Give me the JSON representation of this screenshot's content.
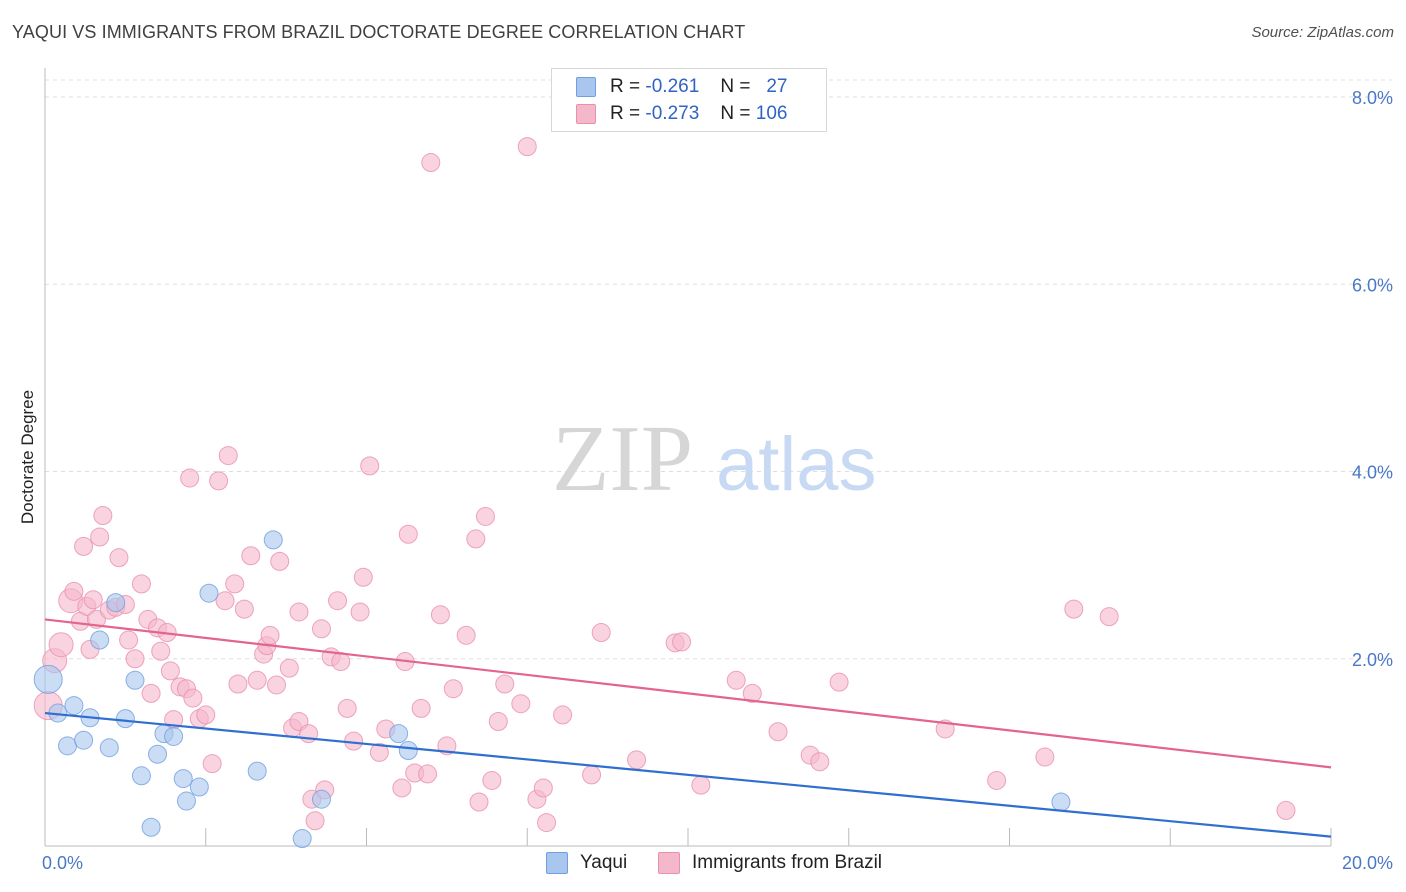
{
  "title": "YAQUI VS IMMIGRANTS FROM BRAZIL DOCTORATE DEGREE CORRELATION CHART",
  "source": "Source: ZipAtlas.com",
  "watermark": {
    "zip": "ZIP",
    "atlas": "atlas"
  },
  "legend": {
    "rows": [
      {
        "r_label": "R =",
        "r_value": "-0.261",
        "n_label": "N =",
        "n_value": "27",
        "color": "#a9c6ef"
      },
      {
        "r_label": "R =",
        "r_value": "-0.273",
        "n_label": "N =",
        "n_value": "106",
        "color": "#f5b8cb"
      }
    ]
  },
  "bottom_legend": {
    "yaqui": "Yaqui",
    "brazil": "Immigrants from Brazil"
  },
  "chart_data": {
    "type": "scatter",
    "title": "YAQUI VS IMMIGRANTS FROM BRAZIL DOCTORATE DEGREE CORRELATION CHART",
    "xlabel": "",
    "ylabel": "Doctorate Degree",
    "xlim": [
      0,
      20
    ],
    "ylim": [
      0,
      8.0
    ],
    "x_tick_labels": [
      "0.0%",
      "20.0%"
    ],
    "y_ticks": [
      2.0,
      4.0,
      6.0,
      8.0
    ],
    "y_tick_labels": [
      "2.0%",
      "4.0%",
      "6.0%",
      "8.0%"
    ],
    "grid": true,
    "colors": {
      "yaqui": "#a9c6ef",
      "yaqui_edge": "#6f9fe0",
      "yaqui_line": "#2f6fcf",
      "brazil": "#f5b8cb",
      "brazil_edge": "#ea8fae",
      "brazil_line": "#e2648f"
    },
    "series": [
      {
        "name": "Yaqui",
        "trend": {
          "x": [
            0,
            20
          ],
          "y": [
            1.42,
            0.1
          ]
        },
        "points": [
          {
            "x": 0.05,
            "y": 1.78,
            "s": 14
          },
          {
            "x": 0.2,
            "y": 1.42,
            "s": 9
          },
          {
            "x": 0.45,
            "y": 1.5,
            "s": 9
          },
          {
            "x": 0.35,
            "y": 1.07,
            "s": 9
          },
          {
            "x": 0.6,
            "y": 1.13,
            "s": 9
          },
          {
            "x": 0.7,
            "y": 1.37,
            "s": 9
          },
          {
            "x": 0.85,
            "y": 2.2,
            "s": 9
          },
          {
            "x": 1.0,
            "y": 1.05,
            "s": 9
          },
          {
            "x": 1.1,
            "y": 2.6,
            "s": 9
          },
          {
            "x": 1.25,
            "y": 1.36,
            "s": 9
          },
          {
            "x": 1.4,
            "y": 1.77,
            "s": 9
          },
          {
            "x": 1.5,
            "y": 0.75,
            "s": 9
          },
          {
            "x": 1.65,
            "y": 0.2,
            "s": 9
          },
          {
            "x": 1.75,
            "y": 0.98,
            "s": 9
          },
          {
            "x": 1.85,
            "y": 1.2,
            "s": 9
          },
          {
            "x": 2.0,
            "y": 1.17,
            "s": 9
          },
          {
            "x": 2.15,
            "y": 0.72,
            "s": 9
          },
          {
            "x": 2.2,
            "y": 0.48,
            "s": 9
          },
          {
            "x": 2.4,
            "y": 0.63,
            "s": 9
          },
          {
            "x": 2.55,
            "y": 2.7,
            "s": 9
          },
          {
            "x": 3.3,
            "y": 0.8,
            "s": 9
          },
          {
            "x": 3.55,
            "y": 3.27,
            "s": 9
          },
          {
            "x": 4.0,
            "y": 0.08,
            "s": 9
          },
          {
            "x": 4.3,
            "y": 0.5,
            "s": 9
          },
          {
            "x": 5.5,
            "y": 1.2,
            "s": 9
          },
          {
            "x": 5.65,
            "y": 1.02,
            "s": 9
          },
          {
            "x": 15.8,
            "y": 0.47,
            "s": 9
          }
        ]
      },
      {
        "name": "Immigrants from Brazil",
        "trend": {
          "x": [
            0,
            20
          ],
          "y": [
            2.42,
            0.84
          ]
        },
        "points": [
          {
            "x": 0.05,
            "y": 1.5,
            "s": 14
          },
          {
            "x": 0.15,
            "y": 1.98,
            "s": 12
          },
          {
            "x": 0.25,
            "y": 2.15,
            "s": 12
          },
          {
            "x": 0.4,
            "y": 2.62,
            "s": 12
          },
          {
            "x": 0.45,
            "y": 2.72,
            "s": 9
          },
          {
            "x": 0.55,
            "y": 2.4,
            "s": 9
          },
          {
            "x": 0.65,
            "y": 2.56,
            "s": 9
          },
          {
            "x": 0.6,
            "y": 3.2,
            "s": 9
          },
          {
            "x": 0.7,
            "y": 2.1,
            "s": 9
          },
          {
            "x": 0.75,
            "y": 2.63,
            "s": 9
          },
          {
            "x": 0.8,
            "y": 2.42,
            "s": 9
          },
          {
            "x": 0.85,
            "y": 3.3,
            "s": 9
          },
          {
            "x": 0.9,
            "y": 3.53,
            "s": 9
          },
          {
            "x": 1.0,
            "y": 2.52,
            "s": 9
          },
          {
            "x": 1.1,
            "y": 2.55,
            "s": 9
          },
          {
            "x": 1.15,
            "y": 3.08,
            "s": 9
          },
          {
            "x": 1.25,
            "y": 2.58,
            "s": 9
          },
          {
            "x": 1.3,
            "y": 2.2,
            "s": 9
          },
          {
            "x": 1.4,
            "y": 2.0,
            "s": 9
          },
          {
            "x": 1.5,
            "y": 2.8,
            "s": 9
          },
          {
            "x": 1.6,
            "y": 2.42,
            "s": 9
          },
          {
            "x": 1.65,
            "y": 1.63,
            "s": 9
          },
          {
            "x": 1.75,
            "y": 2.33,
            "s": 9
          },
          {
            "x": 1.8,
            "y": 2.08,
            "s": 9
          },
          {
            "x": 1.9,
            "y": 2.28,
            "s": 9
          },
          {
            "x": 1.95,
            "y": 1.87,
            "s": 9
          },
          {
            "x": 2.0,
            "y": 1.35,
            "s": 9
          },
          {
            "x": 2.1,
            "y": 1.7,
            "s": 9
          },
          {
            "x": 2.2,
            "y": 1.68,
            "s": 9
          },
          {
            "x": 2.3,
            "y": 1.58,
            "s": 9
          },
          {
            "x": 2.25,
            "y": 3.93,
            "s": 9
          },
          {
            "x": 2.4,
            "y": 1.36,
            "s": 9
          },
          {
            "x": 2.5,
            "y": 1.4,
            "s": 9
          },
          {
            "x": 2.6,
            "y": 0.88,
            "s": 9
          },
          {
            "x": 2.7,
            "y": 3.9,
            "s": 9
          },
          {
            "x": 2.85,
            "y": 4.17,
            "s": 9
          },
          {
            "x": 2.8,
            "y": 2.62,
            "s": 9
          },
          {
            "x": 2.95,
            "y": 2.8,
            "s": 9
          },
          {
            "x": 3.0,
            "y": 1.73,
            "s": 9
          },
          {
            "x": 3.1,
            "y": 2.53,
            "s": 9
          },
          {
            "x": 3.2,
            "y": 3.1,
            "s": 9
          },
          {
            "x": 3.3,
            "y": 1.77,
            "s": 9
          },
          {
            "x": 3.4,
            "y": 2.05,
            "s": 9
          },
          {
            "x": 3.45,
            "y": 2.14,
            "s": 9
          },
          {
            "x": 3.5,
            "y": 2.25,
            "s": 9
          },
          {
            "x": 3.6,
            "y": 1.72,
            "s": 9
          },
          {
            "x": 3.65,
            "y": 3.04,
            "s": 9
          },
          {
            "x": 3.8,
            "y": 1.9,
            "s": 9
          },
          {
            "x": 3.85,
            "y": 1.26,
            "s": 9
          },
          {
            "x": 3.95,
            "y": 2.5,
            "s": 9
          },
          {
            "x": 3.95,
            "y": 1.33,
            "s": 9
          },
          {
            "x": 4.1,
            "y": 1.2,
            "s": 9
          },
          {
            "x": 4.15,
            "y": 0.5,
            "s": 9
          },
          {
            "x": 4.2,
            "y": 0.27,
            "s": 9
          },
          {
            "x": 4.3,
            "y": 2.32,
            "s": 9
          },
          {
            "x": 4.35,
            "y": 0.6,
            "s": 9
          },
          {
            "x": 4.45,
            "y": 2.02,
            "s": 9
          },
          {
            "x": 4.55,
            "y": 2.62,
            "s": 9
          },
          {
            "x": 4.6,
            "y": 1.97,
            "s": 9
          },
          {
            "x": 4.7,
            "y": 1.47,
            "s": 9
          },
          {
            "x": 4.8,
            "y": 1.12,
            "s": 9
          },
          {
            "x": 4.9,
            "y": 2.5,
            "s": 9
          },
          {
            "x": 4.95,
            "y": 2.87,
            "s": 9
          },
          {
            "x": 5.05,
            "y": 4.06,
            "s": 9
          },
          {
            "x": 5.2,
            "y": 1.0,
            "s": 9
          },
          {
            "x": 5.3,
            "y": 1.25,
            "s": 9
          },
          {
            "x": 5.55,
            "y": 0.62,
            "s": 9
          },
          {
            "x": 5.6,
            "y": 1.97,
            "s": 9
          },
          {
            "x": 5.65,
            "y": 3.33,
            "s": 9
          },
          {
            "x": 5.75,
            "y": 0.78,
            "s": 9
          },
          {
            "x": 5.85,
            "y": 1.47,
            "s": 9
          },
          {
            "x": 5.95,
            "y": 0.77,
            "s": 9
          },
          {
            "x": 6.0,
            "y": 7.3,
            "s": 9
          },
          {
            "x": 6.15,
            "y": 2.47,
            "s": 9
          },
          {
            "x": 6.25,
            "y": 1.07,
            "s": 9
          },
          {
            "x": 6.35,
            "y": 1.68,
            "s": 9
          },
          {
            "x": 6.55,
            "y": 2.25,
            "s": 9
          },
          {
            "x": 6.7,
            "y": 3.28,
            "s": 9
          },
          {
            "x": 6.75,
            "y": 0.47,
            "s": 9
          },
          {
            "x": 6.85,
            "y": 3.52,
            "s": 9
          },
          {
            "x": 6.95,
            "y": 0.7,
            "s": 9
          },
          {
            "x": 7.05,
            "y": 1.33,
            "s": 9
          },
          {
            "x": 7.15,
            "y": 1.73,
            "s": 9
          },
          {
            "x": 7.4,
            "y": 1.52,
            "s": 9
          },
          {
            "x": 7.5,
            "y": 7.47,
            "s": 9
          },
          {
            "x": 7.65,
            "y": 0.5,
            "s": 9
          },
          {
            "x": 7.75,
            "y": 0.62,
            "s": 9
          },
          {
            "x": 7.8,
            "y": 0.25,
            "s": 9
          },
          {
            "x": 8.05,
            "y": 1.4,
            "s": 9
          },
          {
            "x": 8.5,
            "y": 0.76,
            "s": 9
          },
          {
            "x": 8.65,
            "y": 2.28,
            "s": 9
          },
          {
            "x": 9.2,
            "y": 0.92,
            "s": 9
          },
          {
            "x": 9.8,
            "y": 2.17,
            "s": 9
          },
          {
            "x": 9.9,
            "y": 2.18,
            "s": 9
          },
          {
            "x": 10.2,
            "y": 0.65,
            "s": 9
          },
          {
            "x": 10.75,
            "y": 1.77,
            "s": 9
          },
          {
            "x": 11.0,
            "y": 1.63,
            "s": 9
          },
          {
            "x": 11.4,
            "y": 1.22,
            "s": 9
          },
          {
            "x": 11.9,
            "y": 0.97,
            "s": 9
          },
          {
            "x": 12.05,
            "y": 0.9,
            "s": 9
          },
          {
            "x": 12.35,
            "y": 1.75,
            "s": 9
          },
          {
            "x": 14.0,
            "y": 1.25,
            "s": 9
          },
          {
            "x": 14.8,
            "y": 0.7,
            "s": 9
          },
          {
            "x": 15.55,
            "y": 0.95,
            "s": 9
          },
          {
            "x": 16.0,
            "y": 2.53,
            "s": 9
          },
          {
            "x": 16.55,
            "y": 2.45,
            "s": 9
          },
          {
            "x": 19.3,
            "y": 0.38,
            "s": 9
          }
        ]
      }
    ]
  }
}
